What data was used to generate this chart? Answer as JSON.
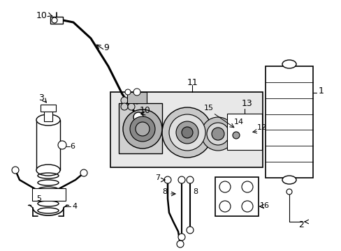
{
  "bg_color": "#ffffff",
  "lc": "#000000",
  "figsize": [
    4.89,
    3.6
  ],
  "dpi": 100,
  "xlim": [
    0,
    489
  ],
  "ylim": [
    0,
    360
  ]
}
